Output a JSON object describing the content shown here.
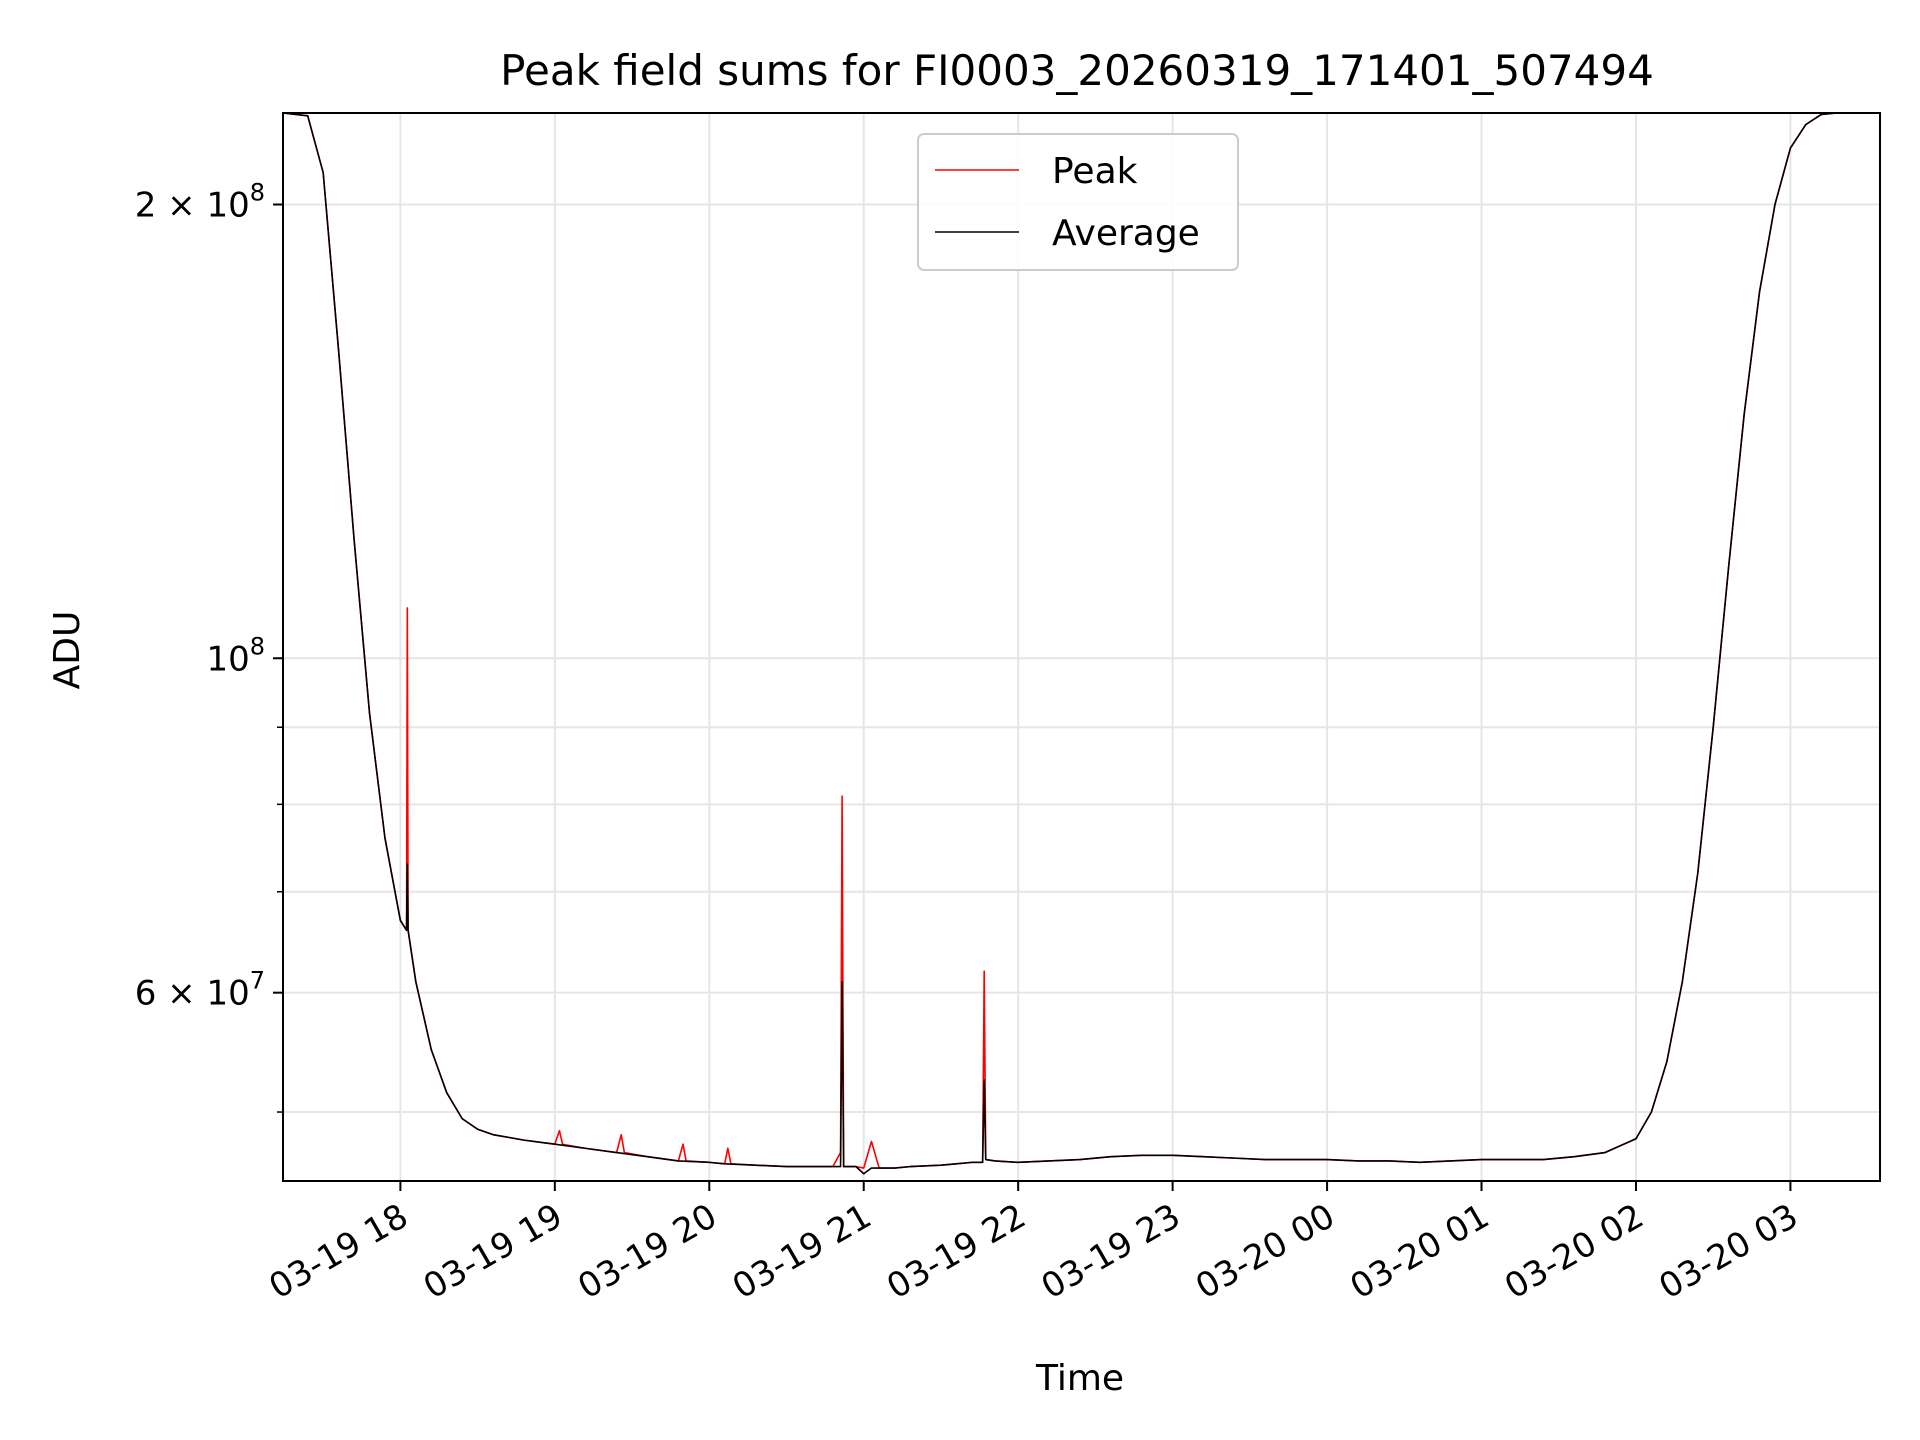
{
  "chart_data": {
    "type": "line",
    "title": "Peak field sums for FI0003_20260319_171401_507494",
    "xlabel": "Time",
    "ylabel": "ADU",
    "yscale": "log",
    "ylim": [
      45000000,
      230000000
    ],
    "xlim_hours": [
      17.24,
      27.58
    ],
    "grid": true,
    "legend_position": "upper-center",
    "colors": {
      "peak": "#ff0000",
      "average": "#000000",
      "grid": "#e6e6e6"
    },
    "x_ticks": [
      {
        "label": "03-19 18",
        "hour": 18
      },
      {
        "label": "03-19 19",
        "hour": 19
      },
      {
        "label": "03-19 20",
        "hour": 20
      },
      {
        "label": "03-19 21",
        "hour": 21
      },
      {
        "label": "03-19 22",
        "hour": 22
      },
      {
        "label": "03-19 23",
        "hour": 23
      },
      {
        "label": "03-20 00",
        "hour": 24
      },
      {
        "label": "03-20 01",
        "hour": 25
      },
      {
        "label": "03-20 02",
        "hour": 26
      },
      {
        "label": "03-20 03",
        "hour": 27
      }
    ],
    "y_major_ticks": [
      {
        "mantissa": "2 × 10",
        "exp": "8",
        "value": 200000000
      },
      {
        "mantissa": "10",
        "exp": "8",
        "value": 100000000
      },
      {
        "mantissa": "6 × 10",
        "exp": "7",
        "value": 60000000
      }
    ],
    "y_minor_values": [
      50000000,
      70000000,
      80000000,
      90000000
    ],
    "series": [
      {
        "name": "Peak",
        "x_hours": [
          17.24,
          17.4,
          17.5,
          17.6,
          17.7,
          17.8,
          17.9,
          18.0,
          18.04,
          18.045,
          18.05,
          18.1,
          18.2,
          18.3,
          18.4,
          18.5,
          18.6,
          18.7,
          18.8,
          19.0,
          19.03,
          19.05,
          19.2,
          19.4,
          19.43,
          19.45,
          19.6,
          19.8,
          19.83,
          19.85,
          20.0,
          20.1,
          20.12,
          20.14,
          20.3,
          20.5,
          20.6,
          20.8,
          20.85,
          20.86,
          20.87,
          20.95,
          21.0,
          21.05,
          21.1,
          21.2,
          21.3,
          21.5,
          21.6,
          21.7,
          21.77,
          21.78,
          21.79,
          21.85,
          22.0,
          22.2,
          22.4,
          22.6,
          22.8,
          23.0,
          23.2,
          23.4,
          23.6,
          23.8,
          24.0,
          24.2,
          24.4,
          24.6,
          24.8,
          25.0,
          25.2,
          25.4,
          25.6,
          25.8,
          26.0,
          26.1,
          26.2,
          26.3,
          26.4,
          26.5,
          26.6,
          26.7,
          26.8,
          26.9,
          27.0,
          27.1,
          27.2,
          27.3,
          27.4,
          27.58
        ],
        "values": [
          230000000,
          229000000,
          210000000,
          160000000,
          120000000,
          92000000,
          76000000,
          67000000,
          66000000,
          108000000,
          66000000,
          61000000,
          55000000,
          51500000,
          49500000,
          48700000,
          48300000,
          48100000,
          47900000,
          47600000,
          48600000,
          47600000,
          47300000,
          47000000,
          48300000,
          47000000,
          46700000,
          46400000,
          47600000,
          46400000,
          46300000,
          46200000,
          47300000,
          46200000,
          46100000,
          46000000,
          46000000,
          46000000,
          47000000,
          81000000,
          46000000,
          46000000,
          45900000,
          47800000,
          45900000,
          45900000,
          46000000,
          46100000,
          46200000,
          46300000,
          46300000,
          62000000,
          46500000,
          46400000,
          46300000,
          46400000,
          46500000,
          46700000,
          46800000,
          46800000,
          46700000,
          46600000,
          46500000,
          46500000,
          46500000,
          46400000,
          46400000,
          46300000,
          46400000,
          46500000,
          46500000,
          46500000,
          46700000,
          47000000,
          48000000,
          50000000,
          54000000,
          61000000,
          72000000,
          90000000,
          115000000,
          145000000,
          175000000,
          200000000,
          218000000,
          226000000,
          229500000,
          230000000,
          230000000,
          230000000
        ]
      },
      {
        "name": "Average",
        "x_hours": [
          17.24,
          17.4,
          17.5,
          17.6,
          17.7,
          17.8,
          17.9,
          18.0,
          18.04,
          18.045,
          18.05,
          18.1,
          18.2,
          18.3,
          18.4,
          18.5,
          18.6,
          18.7,
          18.8,
          19.0,
          19.2,
          19.4,
          19.6,
          19.8,
          20.0,
          20.1,
          20.3,
          20.5,
          20.6,
          20.8,
          20.85,
          20.86,
          20.87,
          20.95,
          21.0,
          21.05,
          21.1,
          21.2,
          21.3,
          21.5,
          21.6,
          21.7,
          21.77,
          21.78,
          21.79,
          21.85,
          22.0,
          22.2,
          22.4,
          22.6,
          22.8,
          23.0,
          23.2,
          23.4,
          23.6,
          23.8,
          24.0,
          24.2,
          24.4,
          24.6,
          24.8,
          25.0,
          25.2,
          25.4,
          25.6,
          25.8,
          26.0,
          26.1,
          26.2,
          26.3,
          26.4,
          26.5,
          26.6,
          26.7,
          26.8,
          26.9,
          27.0,
          27.1,
          27.2,
          27.3,
          27.4,
          27.58
        ],
        "values": [
          230000000,
          229000000,
          210000000,
          160000000,
          120000000,
          92000000,
          76000000,
          67000000,
          66000000,
          73000000,
          66000000,
          61000000,
          55000000,
          51500000,
          49500000,
          48700000,
          48300000,
          48100000,
          47900000,
          47600000,
          47300000,
          47000000,
          46700000,
          46400000,
          46300000,
          46200000,
          46100000,
          46000000,
          46000000,
          46000000,
          46000000,
          61000000,
          46000000,
          46000000,
          45500000,
          45900000,
          45900000,
          45900000,
          46000000,
          46100000,
          46200000,
          46300000,
          46300000,
          52500000,
          46500000,
          46400000,
          46300000,
          46400000,
          46500000,
          46700000,
          46800000,
          46800000,
          46700000,
          46600000,
          46500000,
          46500000,
          46500000,
          46400000,
          46400000,
          46300000,
          46400000,
          46500000,
          46500000,
          46500000,
          46700000,
          47000000,
          48000000,
          50000000,
          54000000,
          61000000,
          72000000,
          90000000,
          115000000,
          145000000,
          175000000,
          200000000,
          218000000,
          226000000,
          229500000,
          230000000,
          230000000,
          230000000
        ]
      }
    ]
  }
}
